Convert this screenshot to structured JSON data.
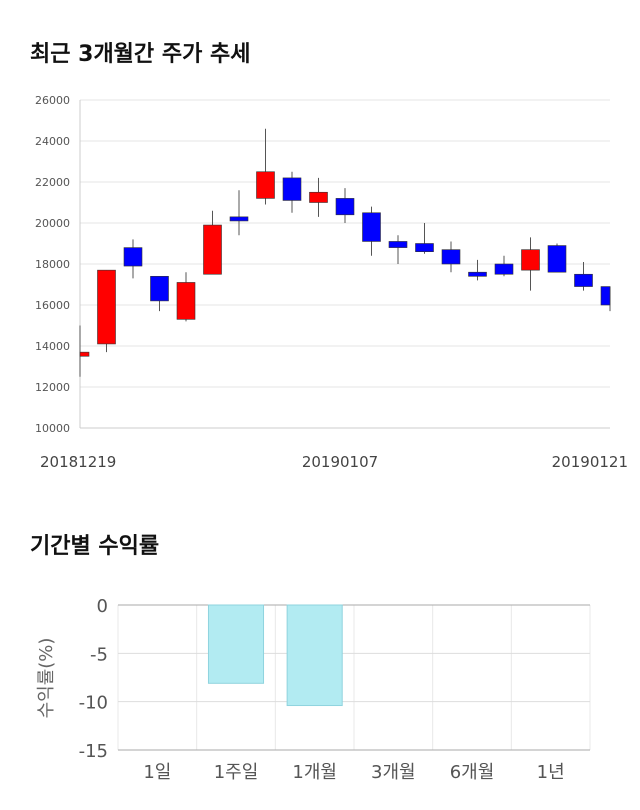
{
  "sections": {
    "price_title": "최근 3개월간 주가 추세",
    "returns_title": "기간별 수익률"
  },
  "colors": {
    "up": "#ff0000",
    "down": "#0000ff",
    "return_bar": "#b2ebf2",
    "return_bar_edge": "#8fd3de"
  },
  "chart_data": [
    {
      "type": "candlestick",
      "title": "최근 3개월간 주가 추세",
      "ylim": [
        10000,
        26000
      ],
      "yticks": [
        10000,
        12000,
        14000,
        16000,
        18000,
        20000,
        22000,
        24000,
        26000
      ],
      "xtick_labels": [
        "20181219",
        "20190107",
        "20190121"
      ],
      "grid": true,
      "candles": [
        {
          "open": 13500,
          "close": 13700,
          "high": 15000,
          "low": 12500
        },
        {
          "open": 14100,
          "close": 17700,
          "high": 17700,
          "low": 13700
        },
        {
          "open": 18800,
          "close": 17900,
          "high": 19200,
          "low": 17300
        },
        {
          "open": 17400,
          "close": 16200,
          "high": 17400,
          "low": 15700
        },
        {
          "open": 15300,
          "close": 17100,
          "high": 17600,
          "low": 15200
        },
        {
          "open": 17500,
          "close": 19900,
          "high": 20600,
          "low": 17500
        },
        {
          "open": 20300,
          "close": 20100,
          "high": 21600,
          "low": 19400
        },
        {
          "open": 21200,
          "close": 22500,
          "high": 24600,
          "low": 20900
        },
        {
          "open": 22200,
          "close": 21100,
          "high": 22500,
          "low": 20500
        },
        {
          "open": 21000,
          "close": 21500,
          "high": 22200,
          "low": 20300
        },
        {
          "open": 21200,
          "close": 20400,
          "high": 21700,
          "low": 20000
        },
        {
          "open": 20500,
          "close": 19100,
          "high": 20800,
          "low": 18400
        },
        {
          "open": 19100,
          "close": 18800,
          "high": 19400,
          "low": 18000
        },
        {
          "open": 19000,
          "close": 18600,
          "high": 20000,
          "low": 18500
        },
        {
          "open": 18700,
          "close": 18000,
          "high": 19100,
          "low": 17600
        },
        {
          "open": 17600,
          "close": 17400,
          "high": 18200,
          "low": 17200
        },
        {
          "open": 18000,
          "close": 17500,
          "high": 18400,
          "low": 17400
        },
        {
          "open": 17700,
          "close": 18700,
          "high": 19300,
          "low": 16700
        },
        {
          "open": 18900,
          "close": 17600,
          "high": 19000,
          "low": 17600
        },
        {
          "open": 17500,
          "close": 16900,
          "high": 18100,
          "low": 16700
        },
        {
          "open": 16900,
          "close": 16000,
          "high": 16900,
          "low": 15700
        }
      ]
    },
    {
      "type": "bar",
      "title": "기간별 수익률",
      "ylabel": "수익률(%)",
      "ylim": [
        -15,
        0
      ],
      "yticks": [
        0,
        -5,
        -10,
        -15
      ],
      "categories": [
        "1일",
        "1주일",
        "1개월",
        "3개월",
        "6개월",
        "1년"
      ],
      "values": [
        0,
        -8.1,
        -10.4,
        0,
        0,
        0
      ],
      "grid": true
    }
  ]
}
